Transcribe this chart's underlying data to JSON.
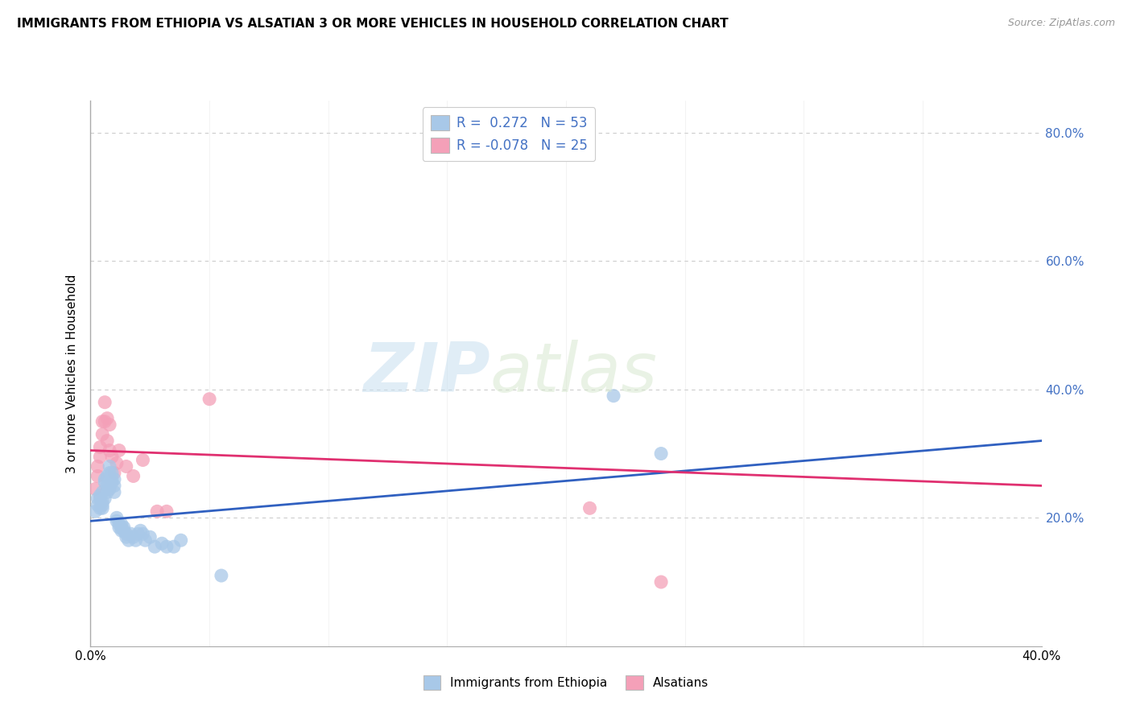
{
  "title": "IMMIGRANTS FROM ETHIOPIA VS ALSATIAN 3 OR MORE VEHICLES IN HOUSEHOLD CORRELATION CHART",
  "source": "Source: ZipAtlas.com",
  "ylabel": "3 or more Vehicles in Household",
  "xlim": [
    0.0,
    0.4
  ],
  "ylim": [
    0.0,
    0.85
  ],
  "r_blue": 0.272,
  "n_blue": 53,
  "r_pink": -0.078,
  "n_pink": 25,
  "blue_scatter_color": "#a8c8e8",
  "pink_scatter_color": "#f4a0b8",
  "blue_line_color": "#3060c0",
  "pink_line_color": "#e03070",
  "legend_label_blue": "Immigrants from Ethiopia",
  "legend_label_pink": "Alsatians",
  "blue_scatter_x": [
    0.002,
    0.003,
    0.003,
    0.004,
    0.004,
    0.004,
    0.005,
    0.005,
    0.005,
    0.005,
    0.006,
    0.006,
    0.006,
    0.007,
    0.007,
    0.007,
    0.008,
    0.008,
    0.008,
    0.009,
    0.009,
    0.009,
    0.01,
    0.01,
    0.01,
    0.011,
    0.011,
    0.012,
    0.012,
    0.013,
    0.013,
    0.013,
    0.014,
    0.014,
    0.015,
    0.015,
    0.016,
    0.017,
    0.018,
    0.019,
    0.02,
    0.021,
    0.022,
    0.023,
    0.025,
    0.027,
    0.03,
    0.032,
    0.035,
    0.038,
    0.055,
    0.22,
    0.24
  ],
  "blue_scatter_y": [
    0.21,
    0.23,
    0.22,
    0.215,
    0.23,
    0.235,
    0.225,
    0.215,
    0.22,
    0.24,
    0.23,
    0.255,
    0.26,
    0.25,
    0.24,
    0.265,
    0.245,
    0.27,
    0.28,
    0.255,
    0.26,
    0.27,
    0.25,
    0.26,
    0.24,
    0.2,
    0.195,
    0.19,
    0.185,
    0.18,
    0.185,
    0.19,
    0.185,
    0.18,
    0.175,
    0.17,
    0.165,
    0.175,
    0.17,
    0.165,
    0.175,
    0.18,
    0.175,
    0.165,
    0.17,
    0.155,
    0.16,
    0.155,
    0.155,
    0.165,
    0.11,
    0.39,
    0.3
  ],
  "pink_scatter_x": [
    0.002,
    0.003,
    0.003,
    0.004,
    0.004,
    0.005,
    0.005,
    0.006,
    0.006,
    0.007,
    0.007,
    0.008,
    0.008,
    0.009,
    0.01,
    0.011,
    0.012,
    0.015,
    0.018,
    0.022,
    0.028,
    0.032,
    0.05,
    0.21,
    0.24
  ],
  "pink_scatter_y": [
    0.245,
    0.265,
    0.28,
    0.295,
    0.31,
    0.33,
    0.35,
    0.35,
    0.38,
    0.32,
    0.355,
    0.345,
    0.305,
    0.295,
    0.27,
    0.285,
    0.305,
    0.28,
    0.265,
    0.29,
    0.21,
    0.21,
    0.385,
    0.215,
    0.1
  ],
  "blue_line_x0": 0.0,
  "blue_line_y0": 0.195,
  "blue_line_x1": 0.4,
  "blue_line_y1": 0.32,
  "pink_line_x0": 0.0,
  "pink_line_y0": 0.305,
  "pink_line_x1": 0.4,
  "pink_line_y1": 0.25,
  "watermark_zip": "ZIP",
  "watermark_atlas": "atlas",
  "background_color": "#ffffff",
  "grid_color": "#cccccc",
  "grid_style": "--"
}
